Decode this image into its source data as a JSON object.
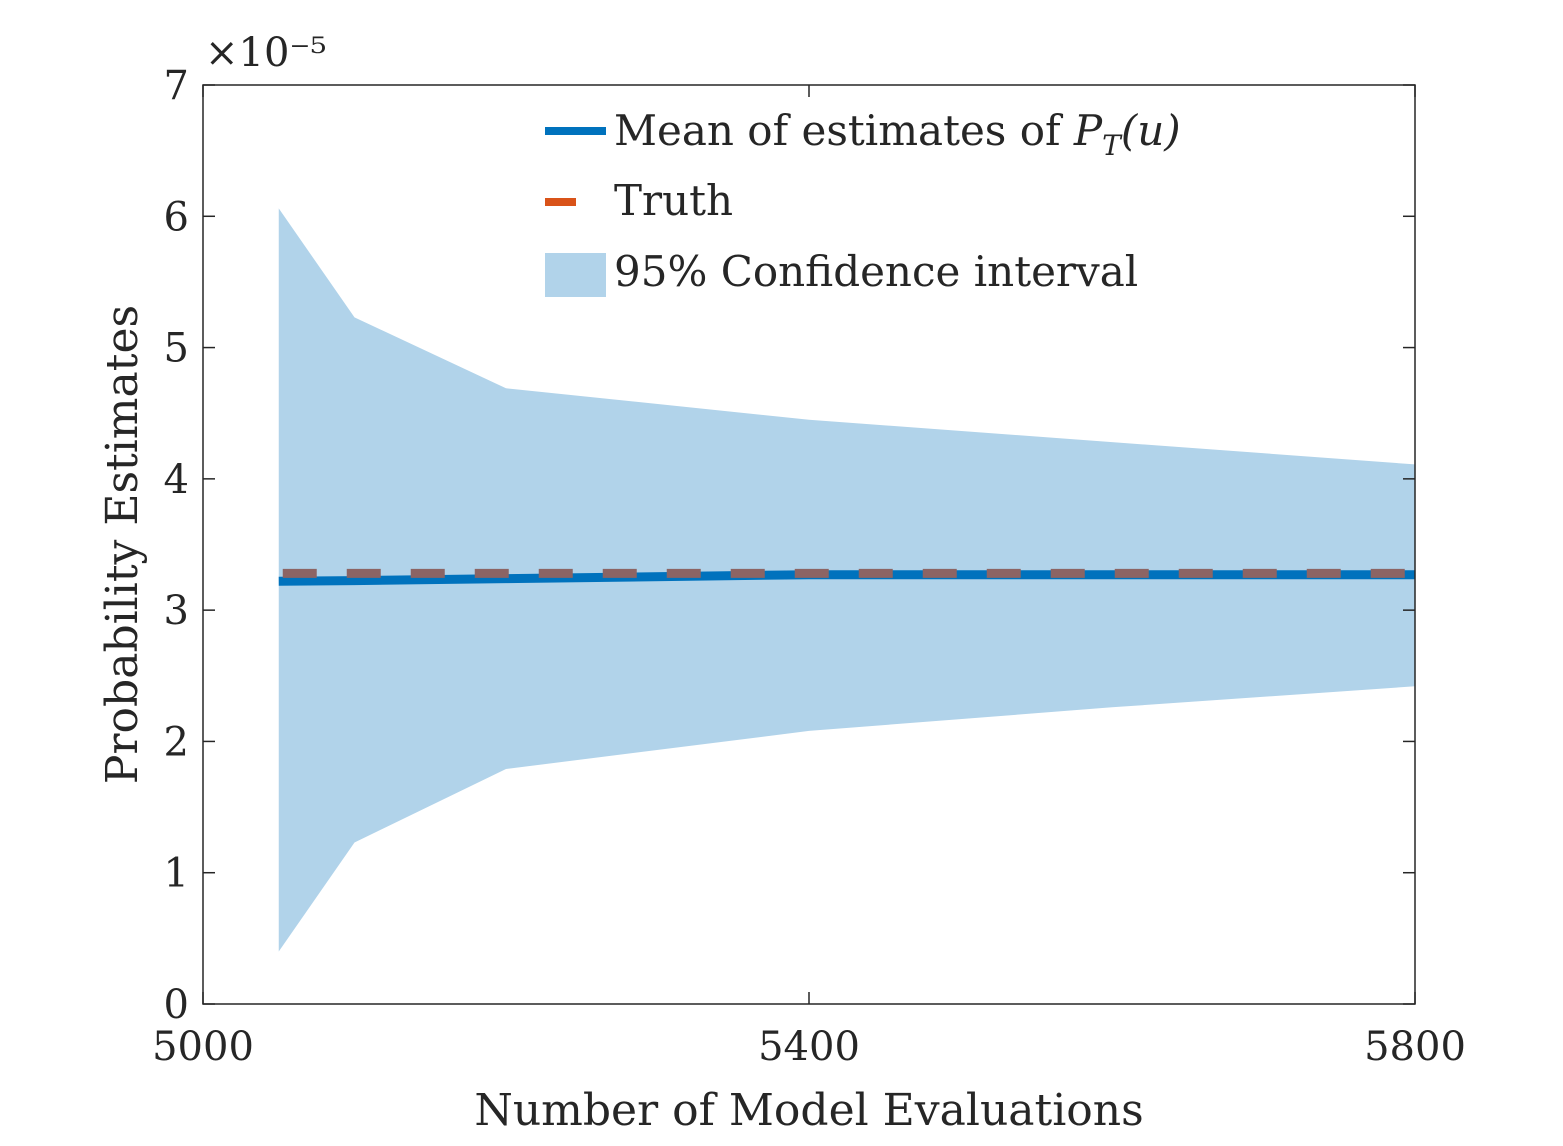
{
  "chart_data": {
    "type": "line",
    "title": "",
    "xlabel": "Number of Model Evaluations",
    "ylabel": "Probability Estimates",
    "xlim": [
      5000,
      5800
    ],
    "ylim": [
      0,
      7
    ],
    "y_exponent_label": "×10⁻⁵",
    "x_ticks": [
      5000,
      5400,
      5800
    ],
    "x_tick_labels": [
      "5000",
      "5400",
      "5800"
    ],
    "y_ticks": [
      0,
      1,
      2,
      3,
      4,
      5,
      6,
      7
    ],
    "y_tick_labels": [
      "0",
      "1",
      "2",
      "3",
      "4",
      "5",
      "6",
      "7"
    ],
    "grid": false,
    "legend_position": "top-center",
    "x": [
      5050,
      5100,
      5200,
      5400,
      5600,
      5800
    ],
    "series": [
      {
        "name": "Mean of estimates of P_T(u)",
        "legend_text": "Mean of estimates of ",
        "legend_math_base": "P",
        "legend_math_sub": "T",
        "legend_math_arg": "(u)",
        "style": "solid",
        "color": "#0072BD",
        "values": [
          3.22,
          3.225,
          3.24,
          3.27,
          3.27,
          3.27
        ]
      },
      {
        "name": "Truth",
        "legend_text": "Truth",
        "style": "dashed",
        "color": "#D95319",
        "overlap_color": "#8C6464",
        "values": [
          3.28,
          3.28,
          3.28,
          3.28,
          3.28,
          3.28
        ]
      },
      {
        "name": "95% Confidence interval",
        "legend_text": "95% Confidence interval",
        "style": "band",
        "color": "#B1D3EA",
        "upper": [
          6.06,
          5.23,
          4.69,
          4.45,
          4.28,
          4.11
        ],
        "lower": [
          0.4,
          1.23,
          1.79,
          2.08,
          2.26,
          2.42
        ]
      }
    ]
  }
}
